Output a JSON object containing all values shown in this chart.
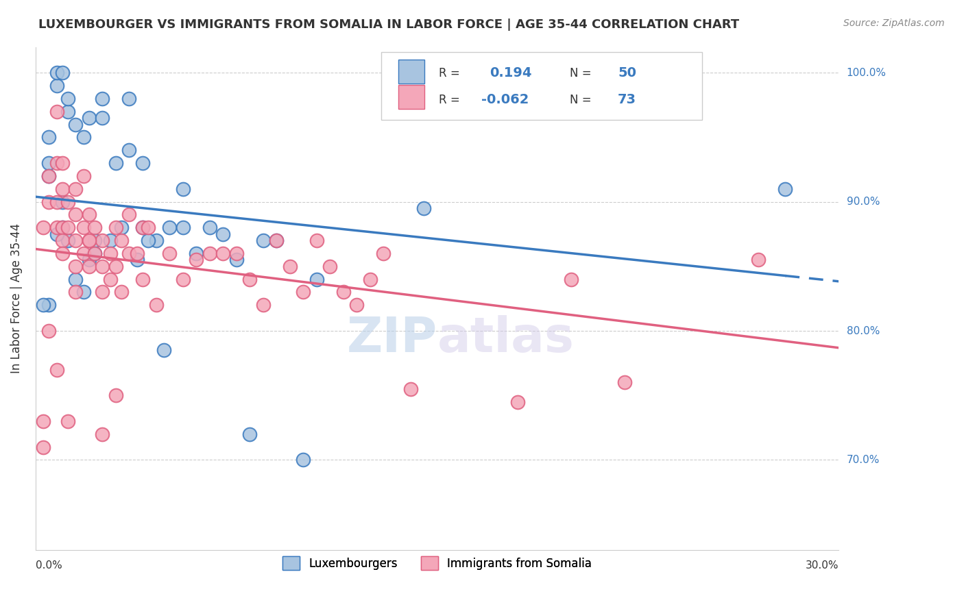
{
  "title": "LUXEMBOURGER VS IMMIGRANTS FROM SOMALIA IN LABOR FORCE | AGE 35-44 CORRELATION CHART",
  "source": "Source: ZipAtlas.com",
  "ylabel": "In Labor Force | Age 35-44",
  "yticks": [
    0.7,
    0.8,
    0.9,
    1.0
  ],
  "xlim": [
    0.0,
    0.3
  ],
  "ylim": [
    0.63,
    1.02
  ],
  "legend_r_blue": "0.194",
  "legend_n_blue": "50",
  "legend_r_pink": "-0.062",
  "legend_n_pink": "73",
  "blue_color": "#a8c4e0",
  "pink_color": "#f4a7b9",
  "blue_line_color": "#3a7abf",
  "pink_line_color": "#e06080",
  "watermark_zip": "ZIP",
  "watermark_atlas": "atlas",
  "blue_scatter_x": [
    0.01,
    0.01,
    0.005,
    0.005,
    0.005,
    0.012,
    0.012,
    0.008,
    0.008,
    0.01,
    0.015,
    0.018,
    0.02,
    0.025,
    0.025,
    0.03,
    0.035,
    0.035,
    0.04,
    0.04,
    0.045,
    0.05,
    0.055,
    0.06,
    0.065,
    0.02,
    0.022,
    0.012,
    0.008,
    0.015,
    0.018,
    0.022,
    0.028,
    0.032,
    0.038,
    0.042,
    0.048,
    0.055,
    0.07,
    0.075,
    0.08,
    0.085,
    0.09,
    0.1,
    0.105,
    0.145,
    0.16,
    0.28,
    0.005,
    0.003
  ],
  "blue_scatter_y": [
    0.88,
    0.9,
    0.95,
    0.93,
    0.92,
    0.97,
    0.98,
    0.99,
    1.0,
    1.0,
    0.96,
    0.95,
    0.965,
    0.98,
    0.965,
    0.93,
    0.94,
    0.98,
    0.93,
    0.88,
    0.87,
    0.88,
    0.91,
    0.86,
    0.88,
    0.855,
    0.86,
    0.87,
    0.875,
    0.84,
    0.83,
    0.87,
    0.87,
    0.88,
    0.855,
    0.87,
    0.785,
    0.88,
    0.875,
    0.855,
    0.72,
    0.87,
    0.87,
    0.7,
    0.84,
    0.895,
    1.0,
    0.91,
    0.82,
    0.82
  ],
  "pink_scatter_x": [
    0.003,
    0.005,
    0.005,
    0.008,
    0.008,
    0.008,
    0.008,
    0.01,
    0.01,
    0.01,
    0.01,
    0.012,
    0.012,
    0.015,
    0.015,
    0.015,
    0.015,
    0.018,
    0.018,
    0.018,
    0.02,
    0.02,
    0.02,
    0.022,
    0.022,
    0.025,
    0.025,
    0.025,
    0.028,
    0.028,
    0.03,
    0.03,
    0.032,
    0.032,
    0.035,
    0.035,
    0.038,
    0.04,
    0.04,
    0.042,
    0.045,
    0.05,
    0.055,
    0.06,
    0.065,
    0.07,
    0.075,
    0.08,
    0.085,
    0.09,
    0.095,
    0.1,
    0.105,
    0.11,
    0.115,
    0.12,
    0.125,
    0.13,
    0.14,
    0.18,
    0.2,
    0.22,
    0.27,
    0.003,
    0.003,
    0.005,
    0.008,
    0.01,
    0.012,
    0.015,
    0.02,
    0.025,
    0.03
  ],
  "pink_scatter_y": [
    0.88,
    0.92,
    0.9,
    0.97,
    0.93,
    0.9,
    0.88,
    0.93,
    0.91,
    0.88,
    0.87,
    0.9,
    0.88,
    0.91,
    0.89,
    0.87,
    0.85,
    0.92,
    0.88,
    0.86,
    0.89,
    0.87,
    0.85,
    0.88,
    0.86,
    0.87,
    0.85,
    0.83,
    0.86,
    0.84,
    0.88,
    0.85,
    0.87,
    0.83,
    0.89,
    0.86,
    0.86,
    0.88,
    0.84,
    0.88,
    0.82,
    0.86,
    0.84,
    0.855,
    0.86,
    0.86,
    0.86,
    0.84,
    0.82,
    0.87,
    0.85,
    0.83,
    0.87,
    0.85,
    0.83,
    0.82,
    0.84,
    0.86,
    0.755,
    0.745,
    0.84,
    0.76,
    0.855,
    0.73,
    0.71,
    0.8,
    0.77,
    0.86,
    0.73,
    0.83,
    0.87,
    0.72,
    0.75
  ]
}
